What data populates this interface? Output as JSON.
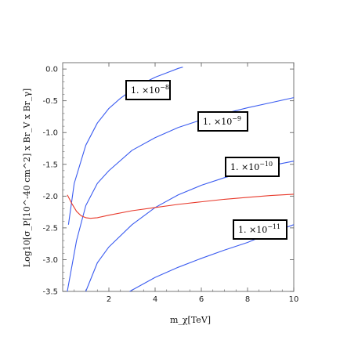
{
  "chart_data": {
    "type": "line",
    "xlabel": "m_χ[TeV]",
    "ylabel": "Log10[σ_P[10^-40 cm^2] x Br_V x Br_γ]",
    "xlim": [
      0,
      10
    ],
    "ylim": [
      -3.5,
      0.0
    ],
    "x_ticks": [
      2,
      4,
      6,
      8,
      10
    ],
    "y_ticks": [
      0.0,
      -0.5,
      -1.0,
      -1.5,
      -2.0,
      -2.5,
      -3.0,
      -3.5
    ],
    "x_tick_labels": [
      "2",
      "4",
      "6",
      "8",
      "10"
    ],
    "y_tick_labels": [
      "0.0",
      "-0.5",
      "-1.0",
      "-1.5",
      "-2.0",
      "-2.5",
      "-3.0",
      "-3.5"
    ],
    "grid": false,
    "series": [
      {
        "label_mantissa": "1. ×10",
        "label_exponent": "−8",
        "color": "#3b5cf0",
        "x": [
          0.25,
          0.5,
          1.0,
          1.5,
          2.0,
          2.5,
          3.0,
          3.5,
          4.0,
          4.5,
          5.0,
          5.2
        ],
        "y": [
          -2.45,
          -1.8,
          -1.2,
          -0.85,
          -0.62,
          -0.46,
          -0.33,
          -0.22,
          -0.13,
          -0.06,
          0.01,
          0.03
        ]
      },
      {
        "label_mantissa": "1. ×10",
        "label_exponent": "−9",
        "color": "#3b5cf0",
        "x": [
          0.2,
          0.6,
          1.0,
          1.5,
          2.0,
          3.0,
          4.0,
          5.0,
          6.0,
          7.0,
          8.0,
          9.0,
          10.0
        ],
        "y": [
          -3.5,
          -2.7,
          -2.15,
          -1.8,
          -1.6,
          -1.28,
          -1.08,
          -0.92,
          -0.8,
          -0.7,
          -0.61,
          -0.53,
          -0.45
        ]
      },
      {
        "label_mantissa": "1. ×10",
        "label_exponent": "−10",
        "color": "#3b5cf0",
        "x": [
          1.0,
          1.5,
          2.0,
          3.0,
          4.0,
          5.0,
          6.0,
          7.0,
          8.0,
          9.0,
          10.0
        ],
        "y": [
          -3.5,
          -3.05,
          -2.8,
          -2.45,
          -2.18,
          -1.98,
          -1.83,
          -1.71,
          -1.61,
          -1.52,
          -1.45
        ]
      },
      {
        "label_mantissa": "1. ×10",
        "label_exponent": "−11",
        "color": "#3b5cf0",
        "x": [
          2.9,
          3.5,
          4.0,
          5.0,
          6.0,
          7.0,
          8.0,
          9.0,
          10.0
        ],
        "y": [
          -3.5,
          -3.38,
          -3.28,
          -3.12,
          -2.98,
          -2.85,
          -2.73,
          -2.58,
          -2.45
        ]
      },
      {
        "color": "#e8392b",
        "x": [
          0.2,
          0.4,
          0.6,
          0.8,
          1.0,
          1.2,
          1.5,
          2.0,
          3.0,
          4.0,
          5.0,
          6.0,
          7.0,
          8.0,
          9.0,
          10.0
        ],
        "y": [
          -1.98,
          -2.12,
          -2.24,
          -2.31,
          -2.34,
          -2.35,
          -2.34,
          -2.3,
          -2.23,
          -2.18,
          -2.13,
          -2.09,
          -2.05,
          -2.02,
          -1.99,
          -1.97
        ]
      }
    ]
  }
}
